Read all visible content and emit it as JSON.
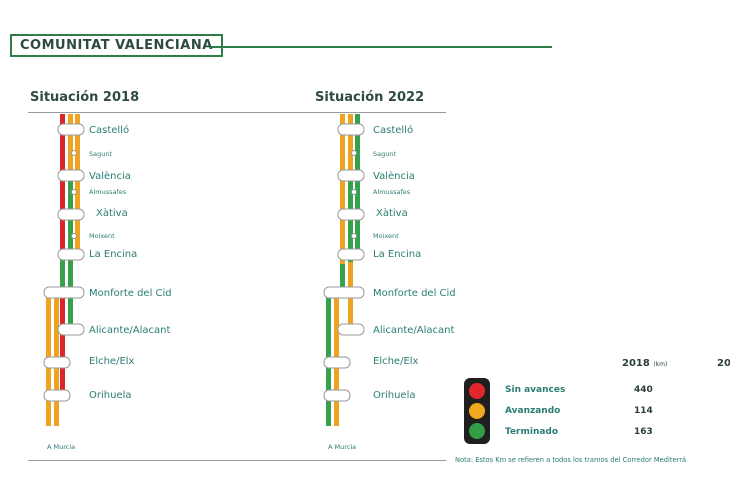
{
  "header": {
    "title": "COMUNITAT VALENCIANA"
  },
  "panels": [
    {
      "title": "Situación 2018"
    },
    {
      "title": "Situación 2022"
    }
  ],
  "stations": [
    "Castelló",
    "Sagunt",
    "València",
    "Almussafes",
    "Xàtiva",
    "Moixent",
    "La Encina",
    "Monforte del Cid",
    "Alicante/Alacant",
    "Elche/Elx",
    "Orihuela"
  ],
  "end_label": "A Murcia",
  "legend": {
    "header": "2018",
    "unit": "(km)",
    "header_next": "20",
    "items": [
      {
        "label": "Sin avances",
        "value": "440",
        "color": "#e2262b"
      },
      {
        "label": "Avanzando",
        "value": "114",
        "color": "#f2a81d"
      },
      {
        "label": "Terminado",
        "value": "163",
        "color": "#2f9e45"
      }
    ]
  },
  "colors": {
    "red": "#d8262b",
    "orange": "#efa421",
    "green": "#36a14a",
    "teal": "#2a7d73"
  },
  "note": "Nota: Estos Km se refieren a todos los tramos del Corredor Mediterrá"
}
